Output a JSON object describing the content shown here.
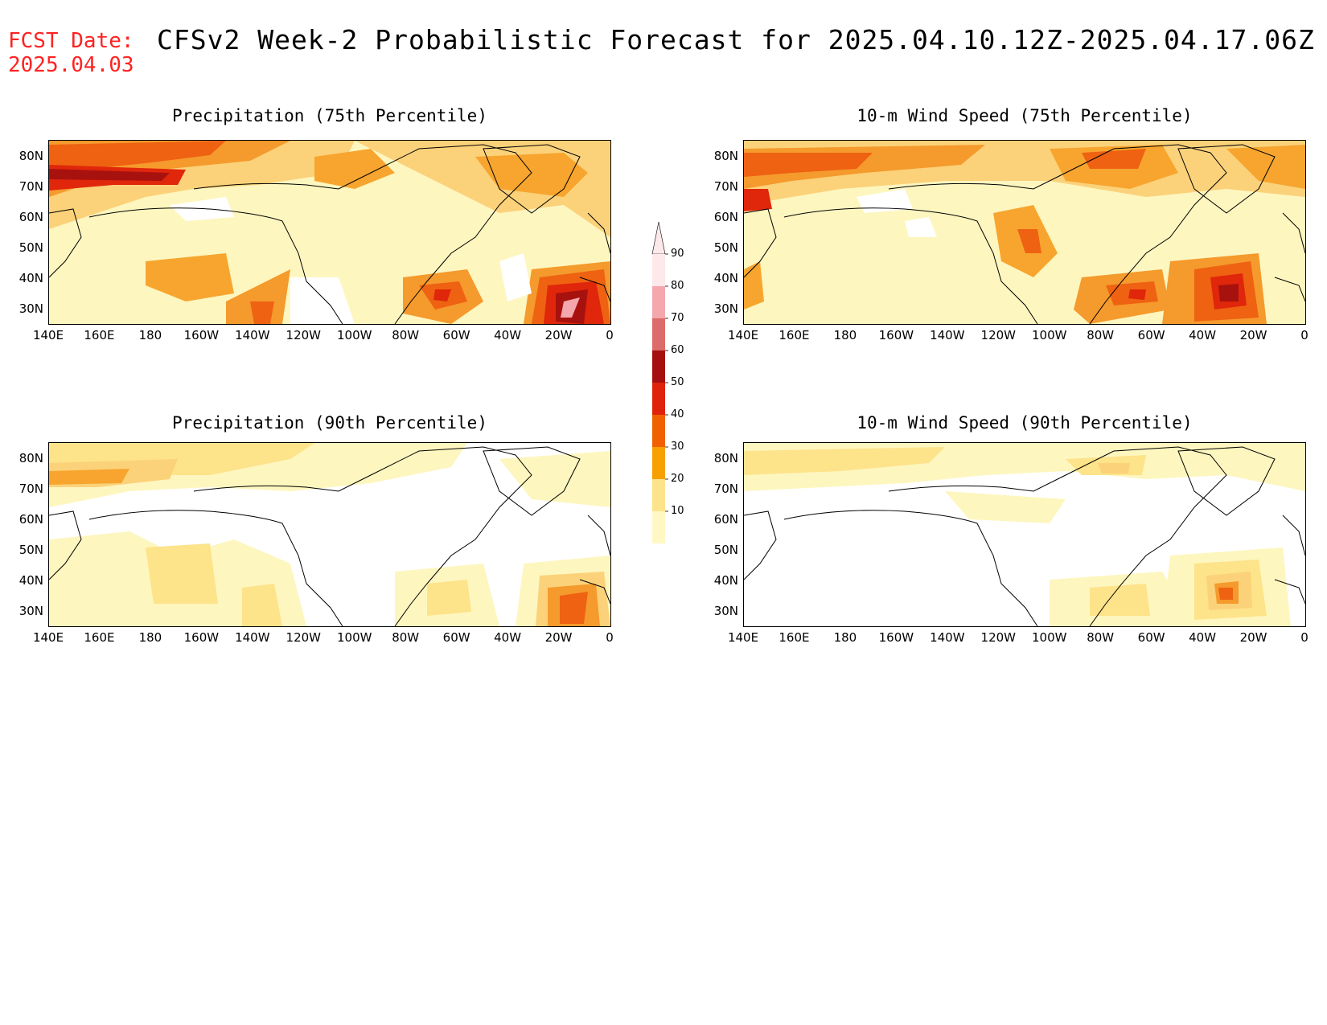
{
  "header": {
    "fcst_line1": "FCST Date:",
    "fcst_line2": "2025.04.03",
    "title": "CFSv2 Week-2 Probabilistic Forecast for 2025.04.10.12Z-2025.04.17.06Z"
  },
  "axes": {
    "lat_labels": [
      "80N",
      "70N",
      "60N",
      "50N",
      "40N",
      "30N"
    ],
    "lon_labels": [
      "140E",
      "160E",
      "180",
      "160W",
      "140W",
      "120W",
      "100W",
      "80W",
      "60W",
      "40W",
      "20W",
      "0"
    ]
  },
  "panels": [
    {
      "id": "precip-75",
      "title": "Precipitation (75th Percentile)"
    },
    {
      "id": "wind-75",
      "title": "10-m Wind Speed (75th Percentile)"
    },
    {
      "id": "precip-90",
      "title": "Precipitation (90th Percentile)"
    },
    {
      "id": "wind-90",
      "title": "10-m Wind Speed (90th Percentile)"
    }
  ],
  "colorbar": {
    "labels": [
      "90",
      "80",
      "70",
      "60",
      "50",
      "40",
      "30",
      "20",
      "10"
    ],
    "colors": [
      "#fde8ea",
      "#f4a7ad",
      "#dc6b6b",
      "#a50f0f",
      "#e0220b",
      "#f06000",
      "#f7a000",
      "#fde38a",
      "#fff8c4"
    ]
  }
}
